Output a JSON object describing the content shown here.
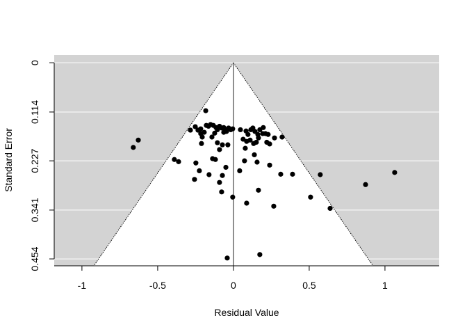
{
  "chart_data": {
    "type": "scatter",
    "x_label": "Residual Value",
    "y_label": "Standard Error",
    "xlim": [
      -1.183,
      1.358
    ],
    "ylim": [
      0.47,
      -0.018
    ],
    "xticks": [
      -1,
      -0.5,
      0,
      0.5,
      1
    ],
    "yticks": [
      0,
      0.114,
      0.227,
      0.341,
      0.454
    ],
    "grid": true,
    "grid_color": "#ffffff",
    "background_color": "#d3d3d3",
    "color": "#000000",
    "x": [
      -0.183,
      -0.661,
      -0.628,
      -0.39,
      -0.362,
      -0.248,
      -0.225,
      -0.257,
      -0.161,
      -0.092,
      -0.073,
      -0.078,
      -0.005,
      -0.05,
      -0.119,
      -0.138,
      -0.092,
      -0.037,
      -0.284,
      -0.252,
      -0.234,
      -0.216,
      -0.193,
      -0.179,
      -0.165,
      -0.151,
      -0.133,
      -0.115,
      -0.106,
      -0.092,
      -0.078,
      -0.064,
      -0.055,
      -0.046,
      -0.032,
      -0.018,
      -0.005,
      0.046,
      -0.216,
      -0.206,
      -0.211,
      -0.142,
      -0.124,
      -0.106,
      -0.073,
      -0.064,
      0.083,
      0.096,
      0.115,
      0.128,
      0.142,
      0.161,
      0.174,
      0.193,
      0.211,
      0.229,
      0.197,
      0.064,
      0.087,
      0.11,
      0.133,
      0.151,
      0.165,
      0.22,
      0.239,
      0.271,
      0.321,
      0.078,
      0.138,
      0.073,
      0.156,
      0.239,
      0.041,
      0.312,
      0.39,
      0.573,
      1.064,
      0.872,
      0.165,
      0.509,
      0.638,
      0.087,
      0.266,
      0.174,
      -0.041
    ],
    "values": [
      0.111,
      0.196,
      0.179,
      0.224,
      0.229,
      0.232,
      0.25,
      0.27,
      0.259,
      0.277,
      0.261,
      0.299,
      0.311,
      0.242,
      0.224,
      0.222,
      0.201,
      0.19,
      0.156,
      0.148,
      0.156,
      0.153,
      0.161,
      0.145,
      0.147,
      0.143,
      0.145,
      0.15,
      0.155,
      0.147,
      0.151,
      0.15,
      0.155,
      0.159,
      0.151,
      0.155,
      0.153,
      0.155,
      0.164,
      0.172,
      0.187,
      0.172,
      0.163,
      0.185,
      0.19,
      0.161,
      0.158,
      0.166,
      0.155,
      0.151,
      0.159,
      0.166,
      0.155,
      0.164,
      0.164,
      0.166,
      0.15,
      0.177,
      0.182,
      0.179,
      0.187,
      0.184,
      0.174,
      0.184,
      0.188,
      0.174,
      0.172,
      0.198,
      0.213,
      0.227,
      0.23,
      0.237,
      0.25,
      0.258,
      0.258,
      0.259,
      0.254,
      0.282,
      0.295,
      0.311,
      0.337,
      0.325,
      0.332,
      0.444,
      0.452
    ]
  }
}
